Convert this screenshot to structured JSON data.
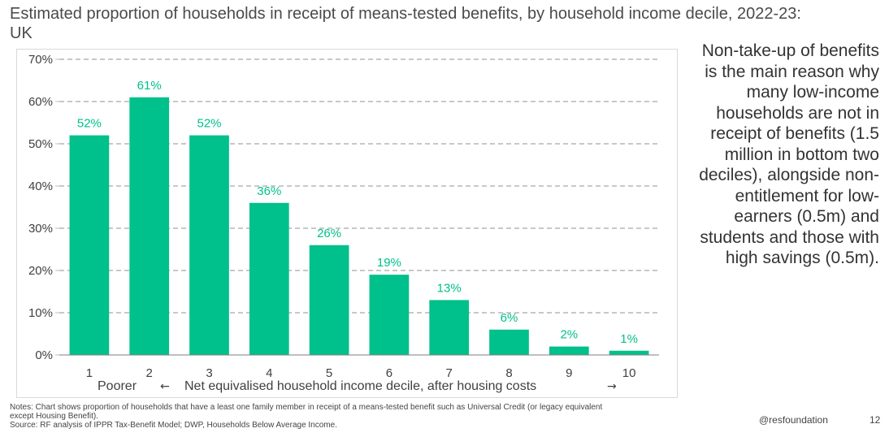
{
  "title": "Estimated proportion of households in receipt of means-tested benefits, by household income decile, 2022-23: UK",
  "sidebar_text": "Non-take-up of benefits is the main reason why many low-income households are not in receipt of benefits (1.5 million in bottom two deciles), alongside non-entitlement for low-earners (0.5m) and students and those with high savings (0.5m).",
  "notes_line1": "Notes: Chart shows proportion of households that have a least one family member in receipt of a means-tested benefit such as Universal Credit (or legacy equivalent",
  "notes_line2": "except Housing Benefit).",
  "source_line": "Source: RF analysis of IPPR Tax-Benefit Model; DWP, Households Below Average Income.",
  "handle": "@resfoundation",
  "page_number": "12",
  "colors": {
    "bar": "#00c08b",
    "data_label": "#00c08b",
    "gridline": "#a6a6a6"
  },
  "chart_data": {
    "type": "bar",
    "categories": [
      "1",
      "2",
      "3",
      "4",
      "5",
      "6",
      "7",
      "8",
      "9",
      "10"
    ],
    "values": [
      52,
      61,
      52,
      36,
      26,
      19,
      13,
      6,
      2,
      1
    ],
    "value_labels": [
      "52%",
      "61%",
      "52%",
      "36%",
      "26%",
      "19%",
      "13%",
      "6%",
      "2%",
      "1%"
    ],
    "ylim": [
      0,
      70
    ],
    "yticks": [
      0,
      10,
      20,
      30,
      40,
      50,
      60,
      70
    ],
    "ytick_labels": [
      "0%",
      "10%",
      "20%",
      "30%",
      "40%",
      "50%",
      "60%",
      "70%"
    ],
    "xlabel_left": "Poorer",
    "xlabel_left_arrow": "←",
    "xlabel": "Net equivalised household income decile, after housing costs",
    "xlabel_right_arrow": "→",
    "grid": true,
    "legend": "none"
  }
}
